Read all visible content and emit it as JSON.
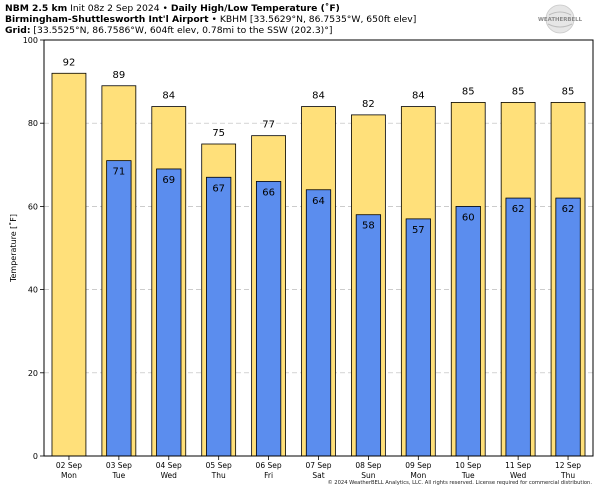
{
  "header": {
    "model": "NBM 2.5 km",
    "init": "Init 08z 2 Sep 2024",
    "separator": "•",
    "product": "Daily High/Low Temperature (˚F)",
    "station_name": "Birmingham-Shuttlesworth Int'l Airport",
    "station_info": "KBHM [33.5629°N, 86.7535°W, 650ft elev]",
    "grid_label": "Grid",
    "grid_info": "[33.5525°N, 86.7586°W, 604ft elev, 0.78mi to the SSW (202.3)°]"
  },
  "logo": {
    "text": "WEATHERBELL"
  },
  "footer": "© 2024 WeatherBELL Analytics, LLC. All rights reserved. License required for commercial distribution.",
  "colors": {
    "high": "#FFE07A",
    "low": "#5B8DEE",
    "grid": "#bbbbbb",
    "plot_bg": "#ffffff",
    "edge": "#000000"
  },
  "chart_data": {
    "type": "bar",
    "ylabel": "Temperature [˚F]",
    "ylim": [
      0,
      100
    ],
    "yticks": [
      0,
      20,
      40,
      60,
      80,
      100
    ],
    "grid": true,
    "categories": [
      "02 Sep",
      "03 Sep",
      "04 Sep",
      "05 Sep",
      "06 Sep",
      "07 Sep",
      "08 Sep",
      "09 Sep",
      "10 Sep",
      "11 Sep",
      "12 Sep"
    ],
    "weekdays": [
      "Mon",
      "Tue",
      "Wed",
      "Thu",
      "Fri",
      "Sat",
      "Sun",
      "Mon",
      "Tue",
      "Wed",
      "Thu"
    ],
    "series": [
      {
        "values": [
          92,
          89,
          84,
          75,
          77,
          84,
          82,
          84,
          85,
          85,
          85
        ]
      },
      {
        "values": [
          null,
          71,
          69,
          67,
          66,
          64,
          58,
          57,
          60,
          62,
          62
        ]
      }
    ]
  }
}
